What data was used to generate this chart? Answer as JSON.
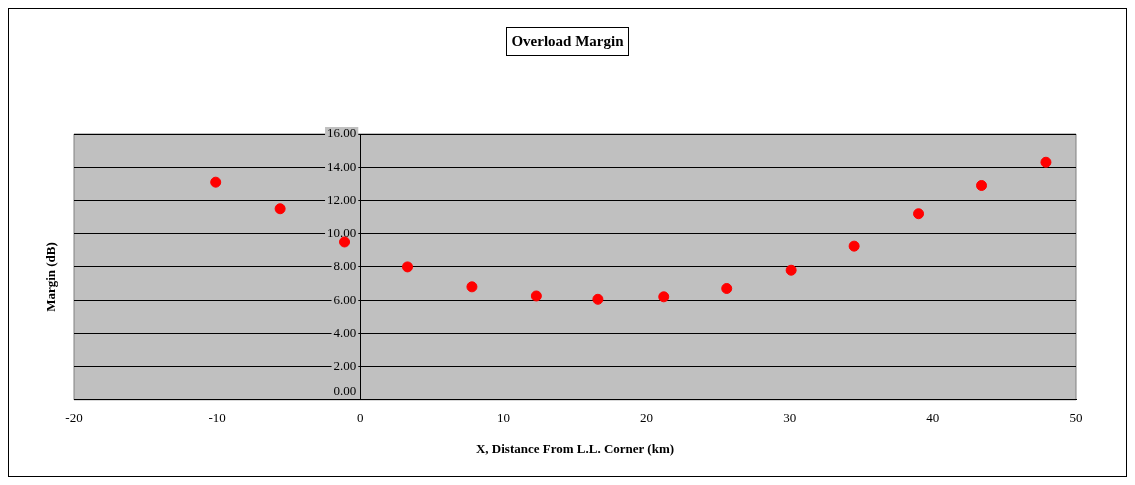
{
  "chart_data": {
    "type": "scatter",
    "title": "Overload Margin",
    "xlabel": "X, Distance From L.L. Corner (km)",
    "ylabel": "Margin (dB)",
    "x": [
      -10.1,
      -5.6,
      -1.1,
      3.3,
      7.8,
      12.3,
      16.6,
      21.2,
      25.6,
      30.1,
      34.5,
      39,
      43.4,
      47.9
    ],
    "series": [
      {
        "color": "#ff0000",
        "values": [
          13.1,
          11.5,
          9.5,
          8.0,
          6.8,
          6.25,
          6.05,
          6.2,
          6.7,
          7.8,
          9.25,
          11.2,
          12.9,
          14.3
        ]
      }
    ],
    "xlim": [
      -20,
      50
    ],
    "xticks": [
      -20,
      -10,
      0,
      10,
      20,
      30,
      40,
      50
    ],
    "ylim": [
      0,
      16
    ],
    "yticks": [
      {
        "value": 0,
        "label": "0.00"
      },
      {
        "value": 2,
        "label": "2.00"
      },
      {
        "value": 4,
        "label": "4.00"
      },
      {
        "value": 6,
        "label": "6.00"
      },
      {
        "value": 8,
        "label": "8.00"
      },
      {
        "value": 10,
        "label": "10.00"
      },
      {
        "value": 12,
        "label": "12.00"
      },
      {
        "value": 14,
        "label": "14.00"
      },
      {
        "value": 16,
        "label": "16.00"
      }
    ],
    "grid": "y",
    "legend": false,
    "marker": "circle"
  }
}
